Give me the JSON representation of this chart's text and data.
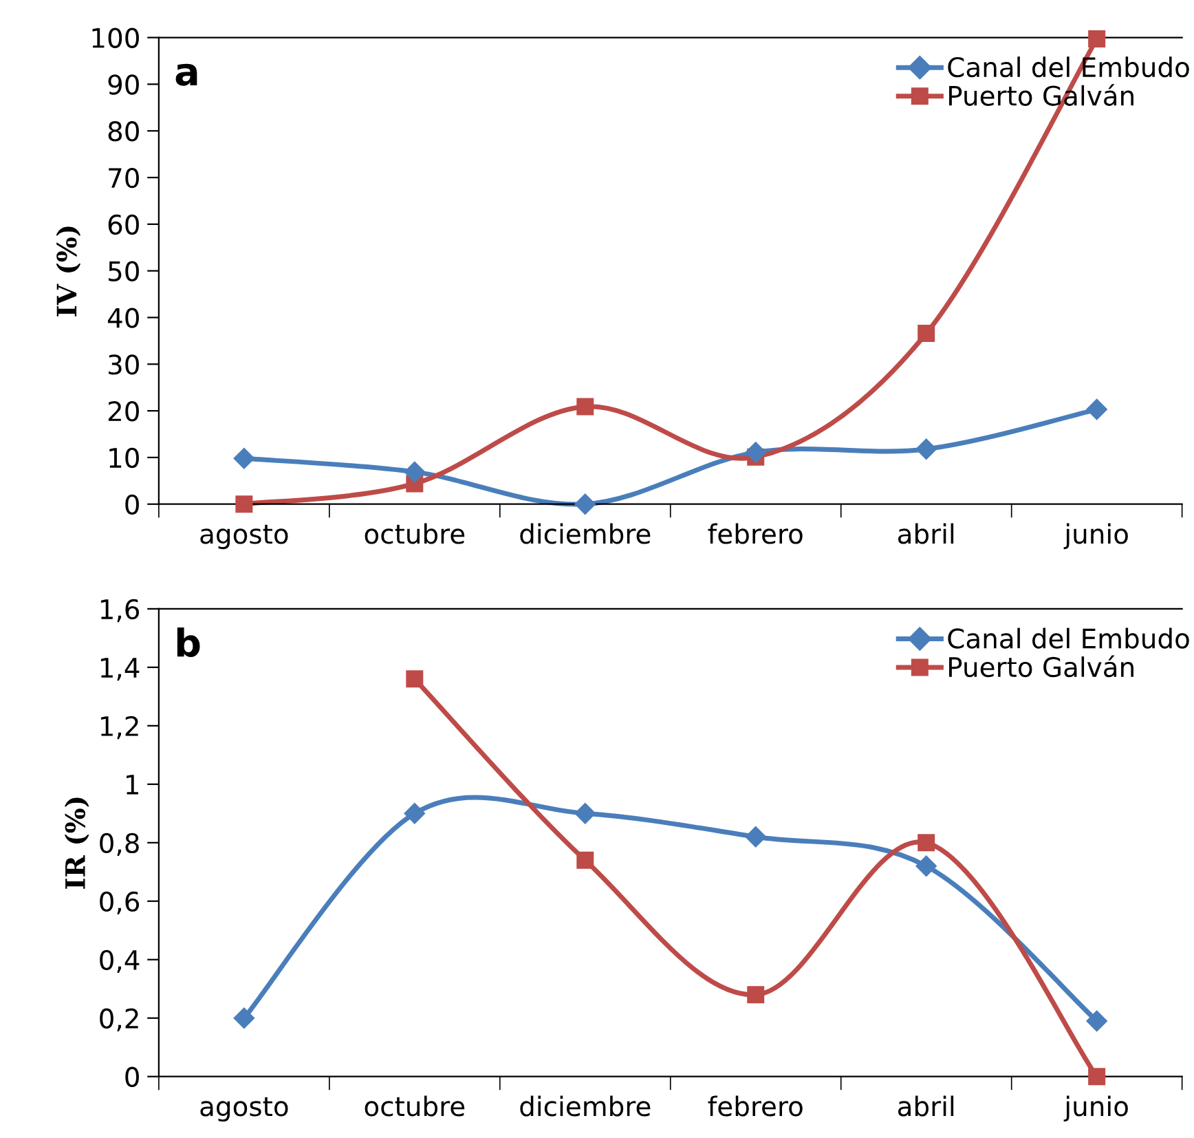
{
  "chart_data": [
    {
      "type": "line",
      "ylabel": "IV (%)",
      "annotations": [
        "a"
      ],
      "categories": [
        "agosto",
        "octubre",
        "diciembre",
        "febrero",
        "abril",
        "junio"
      ],
      "ylim": [
        0,
        100
      ],
      "yticks": [
        0,
        10,
        20,
        30,
        40,
        50,
        60,
        70,
        80,
        90,
        100
      ],
      "legend": "top right",
      "grid": false,
      "series": [
        {
          "name": "Canal del Embudo",
          "color": "#4a7ebb",
          "marker": "diamond",
          "values": [
            9.8,
            6.9,
            0,
            11.1,
            11.8,
            20.3
          ]
        },
        {
          "name": "Puerto Galván",
          "color": "#be4b48",
          "marker": "square",
          "values": [
            0,
            4.4,
            20.9,
            10.1,
            36.6,
            99.7
          ]
        }
      ]
    },
    {
      "type": "line",
      "ylabel": "IR (%)",
      "annotations": [
        "b"
      ],
      "categories": [
        "agosto",
        "octubre",
        "diciembre",
        "febrero",
        "abril",
        "junio"
      ],
      "ylim": [
        0,
        1.6
      ],
      "yticks": [
        0,
        {
          "value": 0.2,
          "label": "0,2"
        },
        {
          "value": 0.4,
          "label": "0,4"
        },
        {
          "value": 0.6,
          "label": "0,6"
        },
        {
          "value": 0.8,
          "label": "0,8"
        },
        1,
        {
          "value": 1.2,
          "label": "1,2"
        },
        {
          "value": 1.4,
          "label": "1,4"
        },
        {
          "value": 1.6,
          "label": "1,6"
        }
      ],
      "legend": "top right",
      "grid": false,
      "series": [
        {
          "name": "Canal del Embudo",
          "color": "#4a7ebb",
          "marker": "diamond",
          "values": [
            0.2,
            0.9,
            0.9,
            0.82,
            0.72,
            0.19
          ]
        },
        {
          "name": "Puerto Galván",
          "color": "#be4b48",
          "marker": "square",
          "values": [
            null,
            1.36,
            0.74,
            0.28,
            0.8,
            0
          ]
        }
      ]
    }
  ]
}
